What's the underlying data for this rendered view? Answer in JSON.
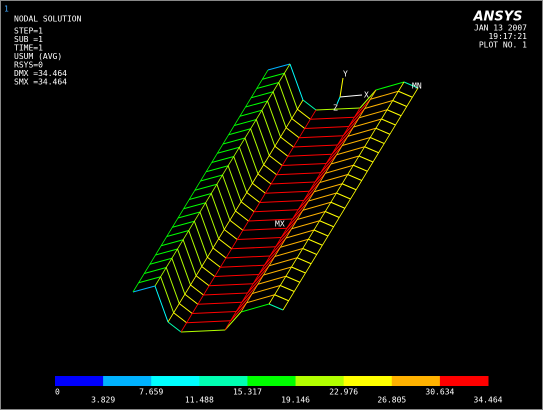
{
  "window_number": "1",
  "info": [
    "NODAL SOLUTION",
    "STEP=1",
    "SUB =1",
    "TIME=1",
    "USUM     (AVG)",
    "RSYS=0",
    "DMX =34.464",
    "SMX =34.464"
  ],
  "logo": "ANSYS",
  "stamp": [
    "JAN 13 2007",
    "19:17:21",
    "PLOT NO.   1"
  ],
  "labels": {
    "mn": "MN",
    "mx": "MX",
    "axis_x": "X",
    "axis_y": "Y",
    "axis_z": "Z"
  },
  "legend": {
    "colors": [
      "#0000ff",
      "#00b2ff",
      "#00ffff",
      "#00ffb2",
      "#00ff00",
      "#b2ff00",
      "#ffff00",
      "#ffb200",
      "#ff0000"
    ],
    "values": [
      "0",
      "3.829",
      "7.659",
      "11.488",
      "15.317",
      "19.146",
      "22.976",
      "26.805",
      "30.634",
      "34.464"
    ]
  }
}
